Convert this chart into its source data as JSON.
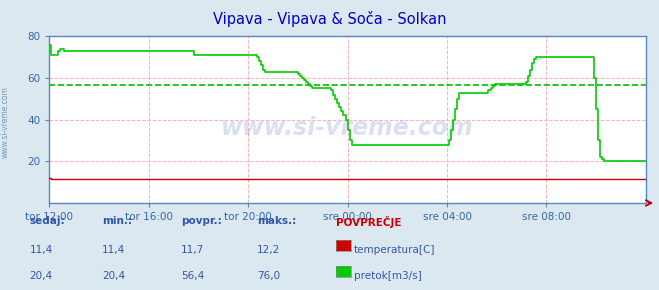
{
  "title": "Vipava - Vipava & Soča - Solkan",
  "title_color": "#0000cc",
  "bg_color": "#dce8f0",
  "plot_bg_color": "#ffffff",
  "grid_h_color": "#ffb0b0",
  "grid_v_color": "#ffb0b0",
  "avg_line_color": "#00bb00",
  "border_color": "#5588bb",
  "xlabel_color": "#3366aa",
  "ylim": [
    0,
    80
  ],
  "yticks": [
    20,
    40,
    60,
    80
  ],
  "x_tick_positions": [
    0,
    48,
    96,
    144,
    192,
    240
  ],
  "x_labels": [
    "tor 12:00",
    "tor 16:00",
    "tor 20:00",
    "sre 00:00",
    "sre 04:00",
    "sre 08:00"
  ],
  "watermark": "www.si-vreme.com",
  "watermark_color": "#3355aa",
  "watermark_alpha": 0.18,
  "temp_color": "#cc0000",
  "flow_color": "#00cc00",
  "avg_flow": 56.4,
  "n_points": 289,
  "legend_items": [
    {
      "label": "temperatura[C]",
      "color": "#cc0000"
    },
    {
      "label": "pretok[m3/s]",
      "color": "#00cc00"
    }
  ],
  "stats_header": [
    "sedaj:",
    "min.:",
    "povpr.:",
    "maks.:",
    "POVPREČJE"
  ],
  "stats_temp": [
    "11,4",
    "11,4",
    "11,7",
    "12,2"
  ],
  "stats_flow": [
    "20,4",
    "20,4",
    "56,4",
    "76,0"
  ],
  "left_label": "www.si-vreme.com"
}
